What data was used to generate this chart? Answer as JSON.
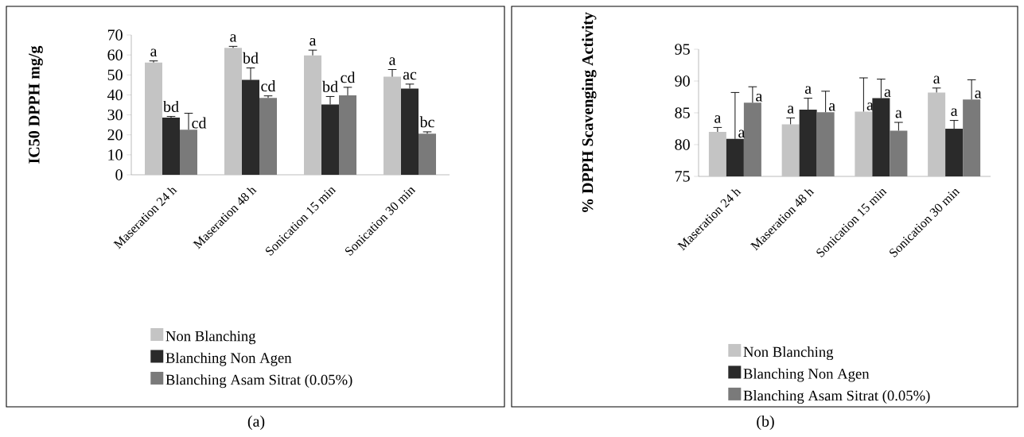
{
  "chart_data": [
    {
      "type": "bar",
      "ylabel": "IC50 DPPH mg/g",
      "categories": [
        "Maseration 24 h",
        "Maseration 48 h",
        "Sonication 15 min",
        "Sonication 30 min"
      ],
      "ylim": [
        0,
        70
      ],
      "yticks": [
        0,
        10,
        20,
        30,
        40,
        50,
        60,
        70
      ],
      "legend": "bottom",
      "annotations": [
        "(a)"
      ],
      "series": [
        {
          "name": "Non Blanching",
          "color": "#c4c4c4",
          "values": [
            56.2,
            63.5,
            59.8,
            49.1
          ],
          "errors": [
            0.8,
            0.8,
            2.6,
            3.6
          ],
          "value_labels": [
            "a",
            "a",
            "a",
            "a"
          ]
        },
        {
          "name": "Blanching Non Agen",
          "color": "#2a2a2a",
          "values": [
            28.6,
            47.5,
            35.2,
            43.2
          ],
          "errors": [
            0.6,
            6,
            4,
            2.2
          ],
          "value_labels": [
            "bd",
            "bd",
            "bd",
            "ac"
          ]
        },
        {
          "name": "Blanching Asam Sitrat (0.05%)",
          "color": "#7a7a7a",
          "values": [
            22.6,
            38.5,
            39.8,
            20.6
          ],
          "errors": [
            8.2,
            1,
            4,
            0.9
          ],
          "value_labels": [
            "cd",
            "cd",
            "cd",
            "bc"
          ]
        }
      ]
    },
    {
      "type": "bar",
      "ylabel": "% DPPH Scavenging Activity",
      "categories": [
        "Maseration 24 h",
        "Maseration 48 h",
        "Sonication 15 min",
        "Sonication 30 min"
      ],
      "ylim": [
        75,
        95
      ],
      "yticks": [
        75,
        80,
        85,
        90,
        95
      ],
      "legend": "bottom",
      "annotations": [
        "(b)"
      ],
      "series": [
        {
          "name": "Non Blanching",
          "color": "#c4c4c4",
          "values": [
            82.0,
            83.2,
            85.2,
            88.2
          ],
          "errors": [
            0.7,
            1,
            5.3,
            0.7
          ],
          "value_labels": [
            "a",
            "a",
            "a",
            "a"
          ]
        },
        {
          "name": "Blanching Non Agen",
          "color": "#2a2a2a",
          "values": [
            80.9,
            85.5,
            87.3,
            82.5
          ],
          "errors": [
            7.3,
            1.8,
            3,
            1.3
          ],
          "value_labels": [
            "a",
            "a",
            "a",
            "a"
          ]
        },
        {
          "name": "Blanching Asam Sitrat (0.05%)",
          "color": "#7a7a7a",
          "values": [
            86.6,
            85.1,
            82.2,
            87.1
          ],
          "errors": [
            2.5,
            3.3,
            1.3,
            3.1
          ],
          "value_labels": [
            "a",
            "a",
            "a",
            "a"
          ]
        }
      ]
    }
  ]
}
